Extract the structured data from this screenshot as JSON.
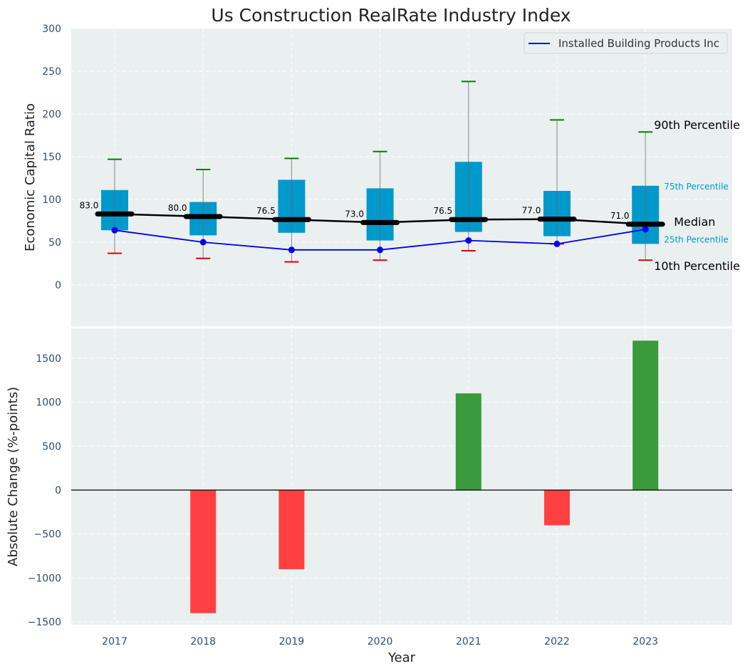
{
  "chart_data": [
    {
      "type": "box",
      "title": "Us Construction RealRate Industry Index",
      "ylabel": "Economic Capital Ratio",
      "ylim": [
        -45,
        300
      ],
      "yticks": [
        "300",
        "250",
        "200",
        "150",
        "100",
        "50",
        "0"
      ],
      "ytick_values": [
        300,
        250,
        200,
        150,
        100,
        50,
        0
      ],
      "categories": [
        "2017",
        "2018",
        "2019",
        "2020",
        "2021",
        "2022",
        "2023"
      ],
      "p10": [
        37,
        31,
        27,
        29,
        40,
        48,
        29
      ],
      "p25": [
        64,
        58,
        61,
        52,
        62,
        57,
        48
      ],
      "median": [
        83,
        80,
        76.5,
        73,
        76.5,
        77,
        71
      ],
      "median_labels": [
        "83.0",
        "80.0",
        "76.5",
        "73.0",
        "76.5",
        "77.0",
        "71.0"
      ],
      "p75": [
        111,
        97,
        123,
        113,
        144,
        110,
        116
      ],
      "p90": [
        147,
        135,
        148,
        156,
        238,
        193,
        179
      ],
      "series": [
        {
          "name": "Installed Building Products Inc",
          "values": [
            64,
            50,
            41,
            41,
            52,
            48,
            65
          ]
        }
      ],
      "legend": {
        "label": "Installed Building Products Inc",
        "position": "top-right"
      },
      "annotations": {
        "p90": "90th Percentile",
        "p75": "75th Percentile",
        "median": "Median",
        "p25": "25th Percentile",
        "p10": "10th Percentile"
      }
    },
    {
      "type": "bar",
      "ylabel": "Absolute Change (%-points)",
      "xlabel": "Year",
      "ylim": [
        -1550,
        1900
      ],
      "yticks": [
        "1500",
        "1000",
        "500",
        "0",
        "−500",
        "−1000",
        "−1500"
      ],
      "ytick_values": [
        1500,
        1000,
        500,
        0,
        -500,
        -1000,
        -1500
      ],
      "categories": [
        "2017",
        "2018",
        "2019",
        "2020",
        "2021",
        "2022",
        "2023"
      ],
      "values": [
        0,
        -1400,
        -900,
        0,
        1100,
        -400,
        1700
      ]
    }
  ],
  "colors": {
    "box": "#0099cc",
    "median_line": "#000000",
    "company_line": "#0000ee",
    "p90_cap": "#008000",
    "p10_cap": "#dd0000",
    "positive_bar": "#3a9b3d",
    "negative_bar": "#ff4040",
    "plot_bg": "#eaeff0",
    "tick_text": "#2f4f6f"
  }
}
